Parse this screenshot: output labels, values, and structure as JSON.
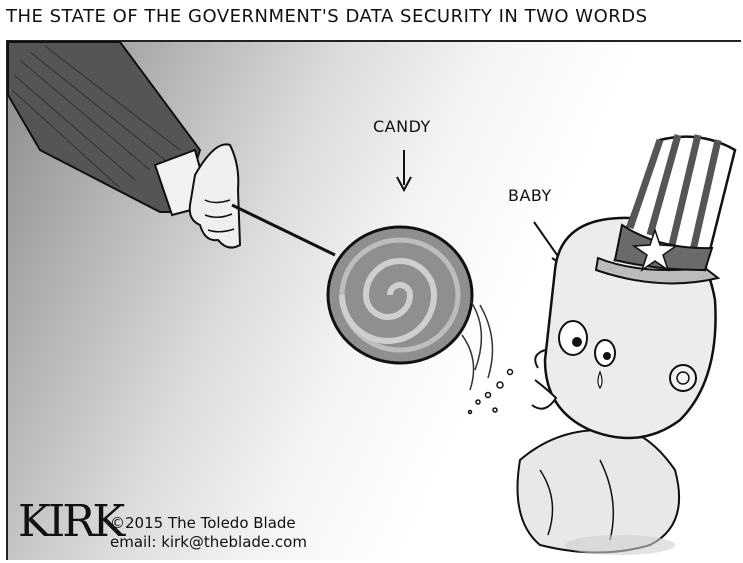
{
  "cartoon": {
    "title": "THE STATE OF THE GOVERNMENT'S DATA SECURITY IN TWO WORDS",
    "labels": {
      "candy": "CANDY",
      "baby": "BABY"
    },
    "signature": "KIRK",
    "credit_line_1": "©2015 The Toledo Blade",
    "credit_line_2": "email: kirk@theblade.com"
  },
  "colors": {
    "ink": "#111111",
    "background": "#ffffff",
    "shade": "#8a8a8a"
  }
}
